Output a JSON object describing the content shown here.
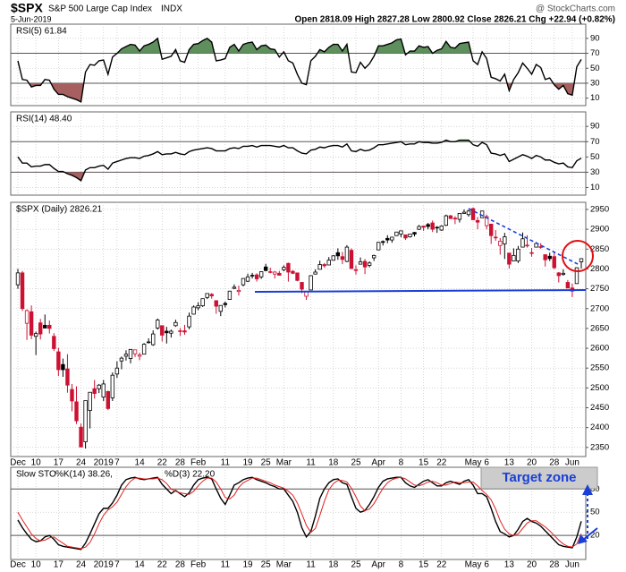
{
  "header": {
    "symbol": "$SPX",
    "name": "S&P 500 Large Cap Index",
    "exchange": "INDX",
    "date": "5-Jun-2019",
    "quote": "Open 2818.09 High 2827.28 Low 2800.92 Close 2826.21 Chg +22.94 (+0.82%)",
    "source": "@ StockCharts.com"
  },
  "chart_data": [
    {
      "type": "line",
      "title": "RSI(5) 61.84",
      "series": [
        {
          "color": "#000000",
          "values": [
            60,
            35,
            34,
            25,
            27,
            27,
            35,
            34,
            22,
            15,
            15,
            12,
            10,
            8,
            5,
            45,
            55,
            54,
            60,
            61,
            42,
            65,
            70,
            76,
            79,
            82,
            81,
            73,
            80,
            82,
            85,
            90,
            62,
            64,
            66,
            75,
            60,
            58,
            75,
            82,
            83,
            87,
            90,
            85,
            60,
            61,
            63,
            78,
            82,
            73,
            82,
            84,
            85,
            75,
            80,
            81,
            76,
            75,
            65,
            72,
            60,
            57,
            42,
            30,
            28,
            60,
            66,
            75,
            72,
            78,
            82,
            82,
            73,
            82,
            45,
            44,
            58,
            50,
            56,
            66,
            80,
            80,
            82,
            84,
            88,
            89,
            68,
            73,
            73,
            80,
            78,
            79,
            70,
            74,
            76,
            86,
            78,
            77,
            83,
            84,
            85,
            60,
            55,
            72,
            63,
            38,
            36,
            33,
            42,
            20,
            35,
            44,
            57,
            50,
            42,
            55,
            51,
            35,
            37,
            28,
            22,
            27,
            16,
            14,
            52,
            61.84
          ]
        }
      ],
      "ylim": [
        0,
        109
      ],
      "yticks": [
        10,
        30,
        50,
        70,
        90
      ],
      "overbought": 70,
      "oversold": 30,
      "overbought_color": "#5e8f5c",
      "oversold_color": "#a5605f"
    },
    {
      "type": "line",
      "title": "RSI(14) 48.40",
      "series": [
        {
          "color": "#000000",
          "values": [
            50,
            42,
            42,
            37,
            38,
            38,
            40,
            40,
            35,
            31,
            31,
            28,
            26,
            23,
            19,
            33,
            36,
            36,
            38,
            39,
            34,
            42,
            44,
            46,
            48,
            49,
            49,
            48,
            51,
            52,
            54,
            57,
            53,
            54,
            54,
            56,
            54,
            53,
            57,
            59,
            60,
            61,
            62,
            61,
            58,
            58,
            58,
            61,
            62,
            61,
            64,
            64,
            65,
            63,
            65,
            65,
            65,
            64,
            63,
            65,
            62,
            62,
            58,
            55,
            54,
            59,
            60,
            63,
            62,
            64,
            65,
            65,
            63,
            67,
            58,
            57,
            60,
            58,
            59,
            62,
            66,
            66,
            67,
            68,
            69,
            70,
            66,
            67,
            67,
            70,
            69,
            69,
            68,
            68,
            69,
            72,
            70,
            70,
            72,
            72,
            72,
            66,
            64,
            69,
            66,
            55,
            54,
            52,
            54,
            44,
            47,
            50,
            53,
            51,
            48,
            52,
            50,
            46,
            46,
            43,
            41,
            42,
            37,
            36,
            45,
            48.4
          ]
        }
      ],
      "ylim": [
        0,
        109
      ],
      "yticks": [
        10,
        30,
        50,
        70,
        90
      ],
      "overbought": 70,
      "oversold": 30,
      "overbought_color": "#5e8f5c",
      "oversold_color": "#a5605f"
    },
    {
      "type": "candlestick",
      "title": "$SPX (Daily) 2826.21",
      "open": [
        2760,
        2790,
        2663,
        2692,
        2630,
        2664,
        2658,
        2658,
        2630,
        2591,
        2559,
        2548,
        2496,
        2465,
        2401,
        2364,
        2443,
        2498,
        2498,
        2477,
        2491,
        2475,
        2535,
        2568,
        2580,
        2574,
        2586,
        2580,
        2585,
        2614,
        2609,
        2651,
        2657,
        2643,
        2638,
        2657,
        2644,
        2644,
        2654,
        2686,
        2702,
        2707,
        2728,
        2736,
        2720,
        2693,
        2713,
        2723,
        2751,
        2743,
        2760,
        2769,
        2784,
        2785,
        2780,
        2805,
        2792,
        2787,
        2789,
        2798,
        2814,
        2794,
        2790,
        2766,
        2731,
        2747,
        2787,
        2799,
        2811,
        2810,
        2822,
        2841,
        2831,
        2819,
        2847,
        2796,
        2812,
        2819,
        2809,
        2828,
        2848,
        2869,
        2877,
        2873,
        2884,
        2888,
        2886,
        2881,
        2892,
        2900,
        2908,
        2912,
        2916,
        2904,
        2898,
        2910,
        2934,
        2928,
        2925,
        2940,
        2937,
        2952,
        2922,
        2929,
        2909,
        2913,
        2879,
        2859,
        2863,
        2840,
        2820,
        2820,
        2855,
        2858,
        2841,
        2855,
        2856,
        2836,
        2832,
        2831,
        2790,
        2786,
        2766,
        2752,
        2763,
        2818
      ],
      "high": [
        2800,
        2795,
        2698,
        2708,
        2642,
        2674,
        2685,
        2670,
        2638,
        2601,
        2574,
        2585,
        2510,
        2504,
        2410,
        2468,
        2489,
        2520,
        2510,
        2520,
        2493,
        2539,
        2567,
        2579,
        2595,
        2598,
        2596,
        2589,
        2613,
        2625,
        2645,
        2675,
        2657,
        2654,
        2647,
        2672,
        2651,
        2659,
        2690,
        2708,
        2716,
        2725,
        2738,
        2739,
        2720,
        2708,
        2718,
        2745,
        2761,
        2758,
        2776,
        2788,
        2790,
        2789,
        2794,
        2813,
        2803,
        2795,
        2795,
        2809,
        2816,
        2797,
        2790,
        2767,
        2744,
        2784,
        2799,
        2821,
        2815,
        2830,
        2835,
        2852,
        2843,
        2860,
        2852,
        2809,
        2829,
        2825,
        2819,
        2836,
        2868,
        2872,
        2885,
        2881,
        2893,
        2896,
        2886,
        2889,
        2893,
        2911,
        2909,
        2916,
        2922,
        2908,
        2910,
        2937,
        2936,
        2933,
        2940,
        2950,
        2949,
        2955,
        2931,
        2947,
        2937,
        2913,
        2898,
        2878,
        2891,
        2840,
        2852,
        2858,
        2892,
        2885,
        2853,
        2868,
        2865,
        2836,
        2841,
        2841,
        2792,
        2799,
        2772,
        2763,
        2804,
        2827
      ],
      "low": [
        2750,
        2694,
        2621,
        2623,
        2583,
        2622,
        2650,
        2637,
        2593,
        2530,
        2528,
        2488,
        2441,
        2409,
        2351,
        2347,
        2398,
        2473,
        2487,
        2467,
        2444,
        2467,
        2525,
        2547,
        2569,
        2562,
        2578,
        2570,
        2585,
        2612,
        2606,
        2647,
        2617,
        2612,
        2627,
        2654,
        2631,
        2634,
        2648,
        2685,
        2696,
        2704,
        2724,
        2725,
        2687,
        2681,
        2703,
        2723,
        2749,
        2733,
        2756,
        2767,
        2776,
        2768,
        2775,
        2794,
        2789,
        2776,
        2784,
        2794,
        2768,
        2787,
        2769,
        2739,
        2722,
        2747,
        2786,
        2799,
        2803,
        2810,
        2821,
        2823,
        2812,
        2817,
        2800,
        2786,
        2812,
        2787,
        2804,
        2820,
        2848,
        2859,
        2865,
        2866,
        2883,
        2880,
        2873,
        2879,
        2882,
        2898,
        2896,
        2900,
        2893,
        2891,
        2896,
        2908,
        2926,
        2913,
        2917,
        2939,
        2932,
        2924,
        2900,
        2929,
        2900,
        2863,
        2871,
        2836,
        2825,
        2801,
        2820,
        2815,
        2855,
        2854,
        2831,
        2855,
        2851,
        2806,
        2820,
        2800,
        2766,
        2783,
        2751,
        2729,
        2763,
        2801
      ],
      "close": [
        2790,
        2700,
        2695,
        2633,
        2637,
        2636,
        2651,
        2650,
        2599,
        2546,
        2546,
        2507,
        2467,
        2417,
        2351,
        2468,
        2489,
        2486,
        2507,
        2510,
        2448,
        2532,
        2550,
        2575,
        2585,
        2597,
        2596,
        2583,
        2610,
        2616,
        2636,
        2671,
        2633,
        2639,
        2643,
        2665,
        2644,
        2641,
        2681,
        2704,
        2707,
        2725,
        2738,
        2732,
        2706,
        2708,
        2710,
        2744,
        2754,
        2746,
        2776,
        2780,
        2784,
        2775,
        2793,
        2796,
        2793,
        2792,
        2784,
        2804,
        2792,
        2789,
        2771,
        2749,
        2743,
        2783,
        2792,
        2811,
        2808,
        2822,
        2833,
        2833,
        2824,
        2855,
        2801,
        2798,
        2818,
        2805,
        2815,
        2834,
        2867,
        2867,
        2873,
        2880,
        2893,
        2896,
        2878,
        2888,
        2888,
        2907,
        2905,
        2907,
        2900,
        2905,
        2908,
        2934,
        2927,
        2926,
        2940,
        2943,
        2946,
        2924,
        2918,
        2946,
        2932,
        2884,
        2880,
        2870,
        2881,
        2812,
        2834,
        2850,
        2876,
        2860,
        2840,
        2864,
        2856,
        2823,
        2826,
        2803,
        2783,
        2789,
        2752,
        2744,
        2803,
        2826
      ],
      "up_color": "#000000",
      "down_color": "#cc1133",
      "ylim": [
        2327,
        2968
      ],
      "yticks": [
        2350,
        2400,
        2450,
        2500,
        2550,
        2600,
        2650,
        2700,
        2750,
        2800,
        2850,
        2900,
        2950
      ],
      "xticks": [
        {
          "value": 0,
          "label": "Dec"
        },
        {
          "value": 4,
          "label": "10"
        },
        {
          "value": 9,
          "label": "17"
        },
        {
          "value": 14,
          "label": "24"
        },
        {
          "value": 19,
          "label": "2019"
        },
        {
          "value": 22,
          "label": "7"
        },
        {
          "value": 27,
          "label": "14"
        },
        {
          "value": 32,
          "label": "22"
        },
        {
          "value": 36,
          "label": "28"
        },
        {
          "value": 40,
          "label": "Feb"
        },
        {
          "value": 46,
          "label": "11"
        },
        {
          "value": 51,
          "label": "19"
        },
        {
          "value": 55,
          "label": "25"
        },
        {
          "value": 59,
          "label": "Mar"
        },
        {
          "value": 65,
          "label": "11"
        },
        {
          "value": 70,
          "label": "18"
        },
        {
          "value": 75,
          "label": "25"
        },
        {
          "value": 80,
          "label": "Apr"
        },
        {
          "value": 85,
          "label": "8"
        },
        {
          "value": 90,
          "label": "15"
        },
        {
          "value": 94,
          "label": "22"
        },
        {
          "value": 101,
          "label": "May"
        },
        {
          "value": 104,
          "label": "6"
        },
        {
          "value": 109,
          "label": "13"
        },
        {
          "value": 114,
          "label": "20"
        },
        {
          "value": 119,
          "label": "28"
        },
        {
          "value": 123,
          "label": "Jun"
        }
      ],
      "grid": true
    },
    {
      "type": "line",
      "title": "Slow STO",
      "series": [
        {
          "name": "%K(14) 38.26,",
          "color": "#000000",
          "values": [
            40,
            30,
            22,
            15,
            12,
            13,
            18,
            20,
            15,
            8,
            6,
            5,
            4,
            3,
            2,
            10,
            22,
            35,
            48,
            55,
            55,
            62,
            72,
            85,
            92,
            94,
            95,
            93,
            92,
            93,
            94,
            95,
            86,
            80,
            74,
            78,
            74,
            70,
            75,
            85,
            92,
            94,
            95,
            93,
            80,
            68,
            60,
            72,
            85,
            88,
            92,
            94,
            95,
            92,
            90,
            88,
            85,
            83,
            80,
            80,
            72,
            64,
            50,
            30,
            18,
            25,
            45,
            68,
            80,
            88,
            92,
            93,
            88,
            86,
            70,
            55,
            50,
            52,
            60,
            70,
            82,
            90,
            93,
            94,
            95,
            95,
            88,
            84,
            82,
            86,
            90,
            92,
            88,
            84,
            84,
            88,
            90,
            88,
            86,
            90,
            92,
            85,
            74,
            74,
            70,
            55,
            38,
            25,
            22,
            18,
            20,
            28,
            38,
            42,
            38,
            36,
            32,
            26,
            20,
            14,
            8,
            6,
            5,
            4,
            18,
            38.26
          ]
        },
        {
          "name": "%D(3) 22.20",
          "color": "#e02020",
          "values": [
            50,
            40,
            31,
            22,
            16,
            13,
            14,
            17,
            18,
            14,
            10,
            6,
            5,
            4,
            3,
            5,
            11,
            22,
            35,
            46,
            53,
            57,
            63,
            73,
            83,
            90,
            94,
            94,
            93,
            93,
            93,
            94,
            92,
            87,
            80,
            77,
            75,
            74,
            73,
            77,
            84,
            90,
            94,
            94,
            89,
            80,
            69,
            67,
            72,
            82,
            88,
            91,
            94,
            94,
            92,
            90,
            88,
            85,
            83,
            81,
            77,
            72,
            62,
            48,
            33,
            24,
            29,
            46,
            64,
            79,
            87,
            91,
            91,
            89,
            81,
            70,
            58,
            52,
            54,
            61,
            71,
            81,
            88,
            92,
            94,
            95,
            93,
            89,
            85,
            84,
            86,
            89,
            90,
            88,
            85,
            85,
            87,
            89,
            88,
            88,
            89,
            89,
            84,
            78,
            73,
            66,
            54,
            39,
            28,
            22,
            20,
            22,
            29,
            36,
            39,
            39,
            35,
            31,
            26,
            20,
            14,
            9,
            6,
            5,
            9,
            22.2
          ]
        }
      ],
      "ylim": [
        -11,
        108
      ],
      "yticks": [
        20,
        50,
        80
      ],
      "overbought": 80,
      "oversold": 20,
      "annotation": "Target zone"
    }
  ]
}
